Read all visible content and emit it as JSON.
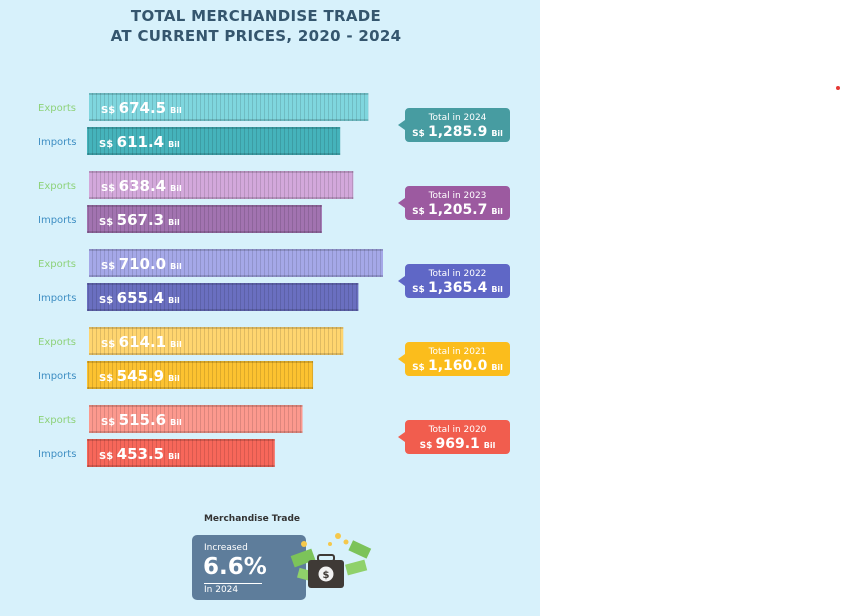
{
  "title_line1": "TOTAL MERCHANDISE TRADE",
  "title_line2": "AT CURRENT PRICES, 2020 - 2024",
  "currency": "S$",
  "unit": "Bil",
  "chart_data": {
    "type": "bar",
    "title": "TOTAL MERCHANDISE TRADE AT CURRENT PRICES, 2020 - 2024",
    "categories": [
      "2024",
      "2023",
      "2022",
      "2021",
      "2020"
    ],
    "series": [
      {
        "name": "Exports",
        "values": [
          674.5,
          638.4,
          710.0,
          614.1,
          515.6
        ]
      },
      {
        "name": "Imports",
        "values": [
          611.4,
          567.3,
          655.4,
          545.9,
          453.5
        ]
      }
    ],
    "totals": [
      1285.9,
      1205.7,
      1365.4,
      1160.0,
      969.1
    ],
    "xlim": [
      0,
      710.0
    ],
    "orientation": "horizontal",
    "grid": false
  },
  "groups": [
    {
      "year": "2024",
      "exports_label": "Exports",
      "imports_label": "Imports",
      "exports_text": "674.5",
      "imports_text": "611.4",
      "total_label": "Total in 2024",
      "total_text": "1,285.9",
      "export_color": "#7fd6de",
      "import_color": "#45b3bb",
      "total_color": "#479ca1"
    },
    {
      "year": "2023",
      "exports_label": "Exports",
      "imports_label": "Imports",
      "exports_text": "638.4",
      "imports_text": "567.3",
      "total_label": "Total in 2023",
      "total_text": "1,205.7",
      "export_color": "#d3a8db",
      "import_color": "#a273b0",
      "total_color": "#9c5aa0"
    },
    {
      "year": "2022",
      "exports_label": "Exports",
      "imports_label": "Imports",
      "exports_text": "710.0",
      "imports_text": "655.4",
      "total_label": "Total in 2022",
      "total_text": "1,365.4",
      "export_color": "#a5a8e8",
      "import_color": "#6a6fc0",
      "total_color": "#5f67c6"
    },
    {
      "year": "2021",
      "exports_label": "Exports",
      "imports_label": "Imports",
      "exports_text": "614.1",
      "imports_text": "545.9",
      "total_label": "Total in 2021",
      "total_text": "1,160.0",
      "export_color": "#ffd56f",
      "import_color": "#fcc230",
      "total_color": "#fbbd1c"
    },
    {
      "year": "2020",
      "exports_label": "Exports",
      "imports_label": "Imports",
      "exports_text": "515.6",
      "imports_text": "453.5",
      "total_label": "Total in 2020",
      "total_text": "969.1",
      "export_color": "#fc998e",
      "import_color": "#f7675a",
      "total_color": "#f15d4e"
    }
  ],
  "summary": {
    "title": "Merchandise Trade",
    "line1": "Increased",
    "value": "6.6%",
    "line2": "In 2024",
    "icon": "money-bag-icon"
  },
  "label_colors": {
    "exports": "#8ed27a",
    "imports": "#3f8fc3"
  }
}
